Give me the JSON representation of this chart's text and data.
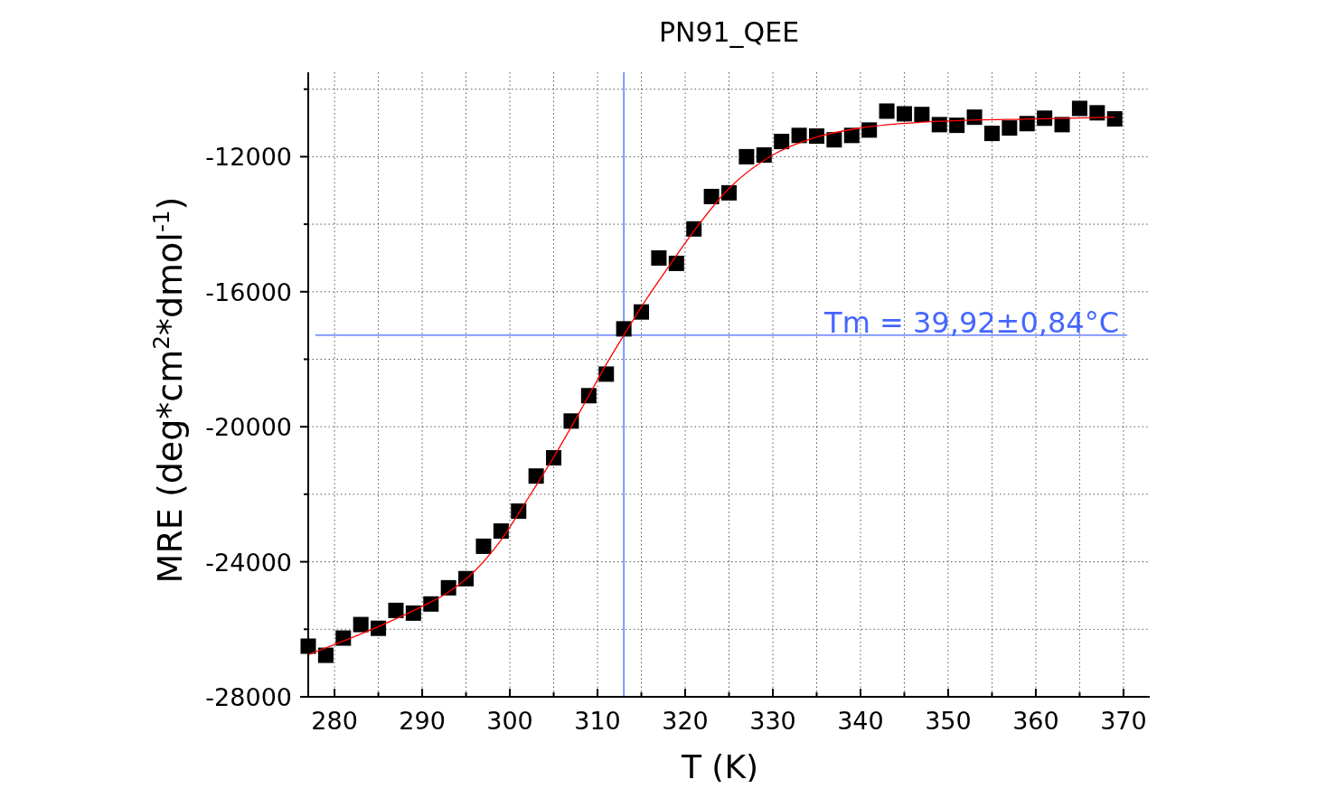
{
  "chart_data": {
    "type": "scatter",
    "title": "PN91_QEE",
    "xlabel": "T (K)",
    "ylabel": "MRE (deg*cm$^{2}$*dmol$^{-1}$)",
    "xlim": [
      277,
      373
    ],
    "ylim": [
      -28000,
      -9500
    ],
    "xticks": [
      280,
      {
        "value": 285,
        "label": null
      },
      290,
      {
        "value": 295,
        "label": null
      },
      300,
      {
        "value": 305,
        "label": null
      },
      310,
      {
        "value": 315,
        "label": null
      },
      320,
      {
        "value": 325,
        "label": null
      },
      330,
      {
        "value": 335,
        "label": null
      },
      340,
      {
        "value": 345,
        "label": null
      },
      350,
      {
        "value": 355,
        "label": null
      },
      360,
      {
        "value": 365,
        "label": null
      },
      370
    ],
    "yticks": [
      -28000,
      {
        "value": -26000,
        "label": null
      },
      -24000,
      {
        "value": -22000,
        "label": null
      },
      -20000,
      {
        "value": -18000,
        "label": null
      },
      -16000,
      {
        "value": -14000,
        "label": null
      },
      -12000,
      {
        "value": -10000,
        "label": null
      }
    ],
    "grid": true,
    "marker": "square",
    "x": [
      277,
      279,
      281,
      283,
      285,
      287,
      289,
      291,
      293,
      295,
      297,
      299,
      301,
      303,
      305,
      307,
      309,
      311,
      313,
      315,
      317,
      319,
      321,
      323,
      325,
      327,
      329,
      331,
      333,
      335,
      337,
      339,
      341,
      343,
      345,
      347,
      349,
      351,
      353,
      355,
      357,
      359,
      361,
      363,
      365,
      367,
      369
    ],
    "series": [
      {
        "color": "#000000",
        "values": [
          -26500,
          -26770,
          -26260,
          -25860,
          -25970,
          -25440,
          -25520,
          -25250,
          -24770,
          -24500,
          -23540,
          -23090,
          -22500,
          -21460,
          -20920,
          -19830,
          -19080,
          -18440,
          -17100,
          -16600,
          -15000,
          -15160,
          -14140,
          -13180,
          -13070,
          -12000,
          -11950,
          -11550,
          -11370,
          -11390,
          -11500,
          -11370,
          -11210,
          -10650,
          -10730,
          -10750,
          -11050,
          -11070,
          -10830,
          -11310,
          -11150,
          -11020,
          -10860,
          -11050,
          -10570,
          -10700,
          -10880
        ]
      },
      {
        "type": "line",
        "color": "#ff0000",
        "marker": "none",
        "x": [
          277,
          280,
          285,
          290,
          293,
          296,
          299,
          302,
          305,
          308,
          311,
          313,
          315,
          318,
          321,
          325,
          330,
          335,
          340,
          350,
          360,
          369
        ],
        "values": [
          -26750,
          -26450,
          -25920,
          -25320,
          -24900,
          -24270,
          -23350,
          -22150,
          -20900,
          -19550,
          -18150,
          -17290,
          -16450,
          -15300,
          -14200,
          -12940,
          -11950,
          -11420,
          -11150,
          -10940,
          -10880,
          -10830
        ]
      }
    ],
    "ref_lines": [
      {
        "axis": "x",
        "value": 313,
        "color": "#4466ff"
      },
      {
        "axis": "y",
        "value": -17290,
        "color": "#4466ff"
      }
    ],
    "annotations": [
      "Tm = 39,92±0,84°C"
    ]
  }
}
